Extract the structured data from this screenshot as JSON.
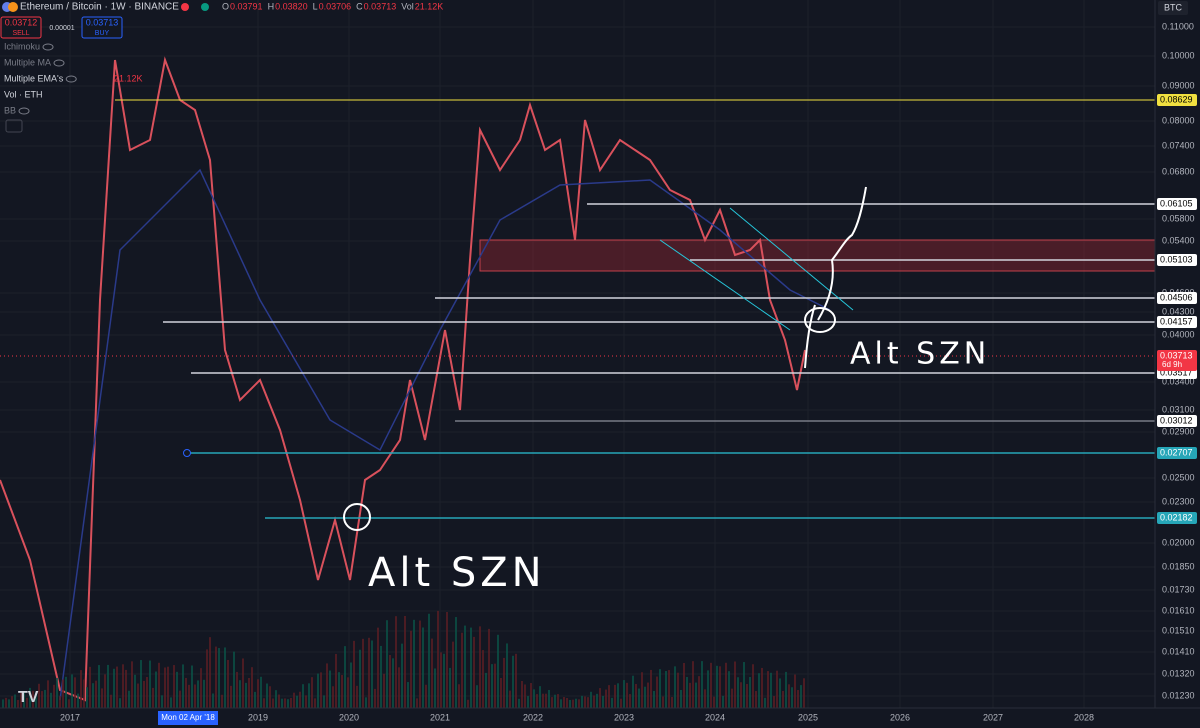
{
  "header": {
    "symbol": "Ethereum / Bitcoin · 1W · BINANCE",
    "o_label": "O",
    "open": "0.03791",
    "h_label": "H",
    "high": "0.03820",
    "l_label": "L",
    "low": "0.03706",
    "c_label": "C",
    "close": "0.03713",
    "vol_label": "Vol",
    "volume": "21.12K",
    "currency": "BTC"
  },
  "trade": {
    "sell_price": "0.03712",
    "sell": "SELL",
    "spread": "0.00001",
    "buy_price": "0.03713",
    "buy": "BUY"
  },
  "indicators": [
    "Ichimoku",
    "Multiple MA",
    "Multiple EMA's",
    "Vol · ETH",
    "BB"
  ],
  "indicator_value": "21.12K",
  "price_axis": [
    "0.11000",
    "0.10000",
    "0.09000",
    "0.08000",
    "0.07400",
    "0.06800",
    "0.05800",
    "0.05400",
    "0.04600",
    "0.04300",
    "0.04000",
    "0.03400",
    "0.03100",
    "0.02900",
    "0.02500",
    "0.02300",
    "0.02000",
    "0.01850",
    "0.01730",
    "0.01610",
    "0.01510",
    "0.01410",
    "0.01320",
    "0.01230"
  ],
  "levels": [
    "0.08629",
    "0.06105",
    "0.05103",
    "0.04506",
    "0.04157",
    "0.03517",
    "0.03012",
    "0.02707",
    "0.02182"
  ],
  "last_price": "0.03713",
  "countdown": "6d 9h",
  "time_axis": [
    "2017",
    "2019",
    "2020",
    "2021",
    "2022",
    "2023",
    "2024",
    "2025",
    "2026",
    "2027",
    "2028"
  ],
  "crosshair_date": "Mon 02 Apr '18",
  "annotations": [
    "Alt SZN",
    "Alt SZN"
  ]
}
